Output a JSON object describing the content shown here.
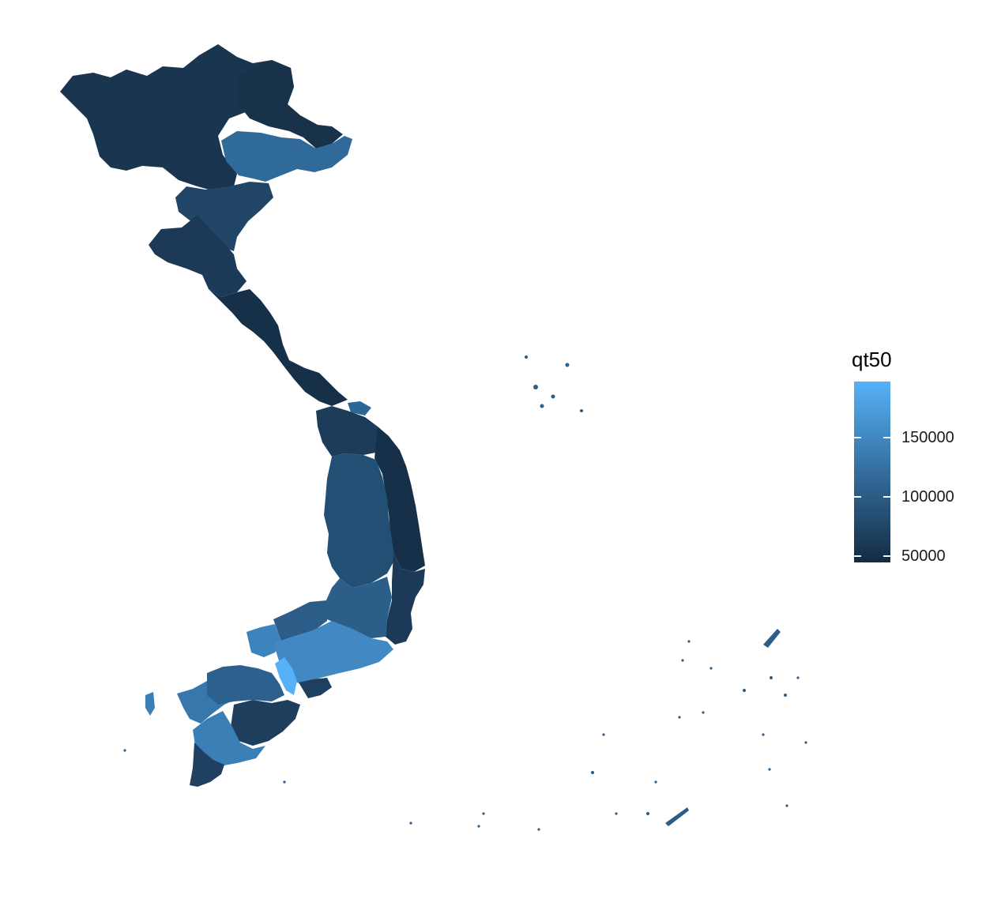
{
  "legend": {
    "title": "qt50",
    "ticks": [
      {
        "value": 150000,
        "label": "150000"
      },
      {
        "value": 100000,
        "label": "100000"
      },
      {
        "value": 50000,
        "label": "50000"
      }
    ],
    "range": [
      45000,
      197000
    ]
  },
  "colors": {
    "low": "#132B43",
    "high": "#56B1F7",
    "background": "#FFFFFF"
  }
}
